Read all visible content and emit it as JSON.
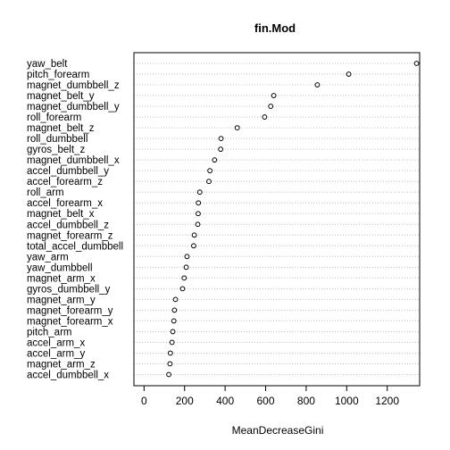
{
  "chart_data": {
    "type": "scatter",
    "style": "dotchart",
    "title": "fin.Mod",
    "xlabel": "MeanDecreaseGini",
    "ylabel": "",
    "xlim": [
      -50,
      1360
    ],
    "xticks": [
      0,
      200,
      400,
      600,
      800,
      1000,
      1200
    ],
    "grid": "dotted horizontal lines per category",
    "colors": {
      "point_stroke": "#000000",
      "grid": "#bebebe",
      "box": "#000000"
    },
    "categories": [
      "yaw_belt",
      "pitch_forearm",
      "magnet_dumbbell_z",
      "magnet_belt_y",
      "magnet_dumbbell_y",
      "roll_forearm",
      "magnet_belt_z",
      "roll_dumbbell",
      "gyros_belt_z",
      "magnet_dumbbell_x",
      "accel_dumbbell_y",
      "accel_forearm_z",
      "roll_arm",
      "accel_forearm_x",
      "magnet_belt_x",
      "accel_dumbbell_z",
      "magnet_forearm_z",
      "total_accel_dumbbell",
      "yaw_arm",
      "yaw_dumbbell",
      "magnet_arm_x",
      "gyros_dumbbell_y",
      "magnet_arm_y",
      "magnet_forearm_y",
      "magnet_forearm_x",
      "pitch_arm",
      "accel_arm_x",
      "accel_arm_y",
      "magnet_arm_z",
      "accel_dumbbell_x"
    ],
    "values": [
      1345,
      1010,
      855,
      640,
      625,
      595,
      460,
      380,
      378,
      348,
      325,
      320,
      275,
      268,
      267,
      265,
      248,
      245,
      212,
      208,
      198,
      190,
      155,
      150,
      147,
      142,
      138,
      130,
      128,
      122
    ]
  }
}
